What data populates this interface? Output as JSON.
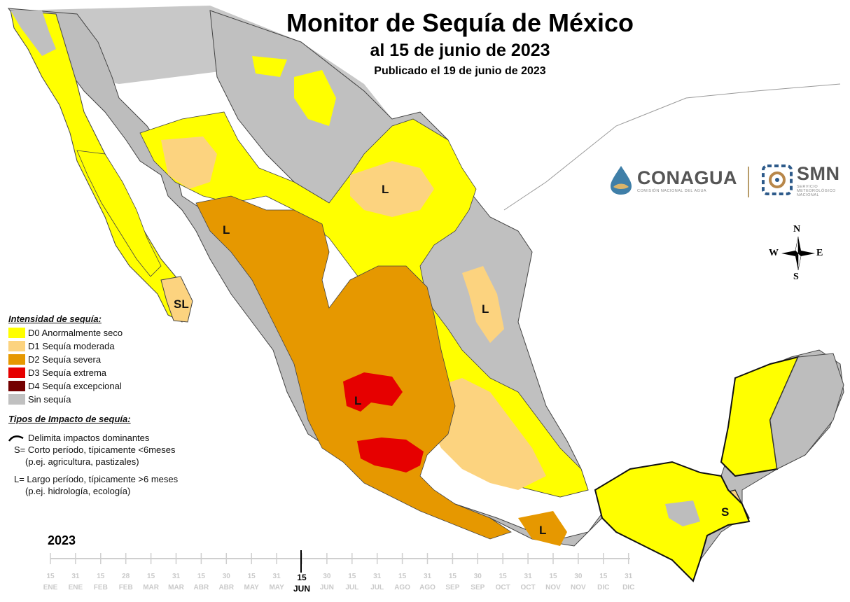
{
  "header": {
    "title": "Monitor de Sequía de México",
    "subtitle": "al 15 de junio de 2023",
    "published": "Publicado el 19 de junio de 2023"
  },
  "logos": {
    "conagua_name": "CONAGUA",
    "conagua_sub": "COMISIÓN NACIONAL DEL AGUA",
    "smn_name": "SMN",
    "smn_sub_1": "SERVICIO",
    "smn_sub_2": "METEOROLÓGICO",
    "smn_sub_3": "NACIONAL"
  },
  "compass": {
    "n": "N",
    "s": "S",
    "e": "E",
    "w": "W"
  },
  "legend": {
    "title": "Intensidad de sequía:",
    "items": [
      {
        "label": "D0 Anormalmente seco",
        "color": "#ffff00"
      },
      {
        "label": "D1 Sequía moderada",
        "color": "#fcd37f"
      },
      {
        "label": "D2 Sequía severa",
        "color": "#e69800"
      },
      {
        "label": "D3 Sequía extrema",
        "color": "#e60000"
      },
      {
        "label": "D4 Sequía excepcional",
        "color": "#730000"
      },
      {
        "label": "Sin sequía",
        "color": "#c0c0c0"
      }
    ]
  },
  "impacts": {
    "title": "Tipos de Impacto de sequía:",
    "line_label": "Delimita impactos dominantes",
    "short_label": "S= Corto período, típicamente <6meses",
    "short_example": "(p.ej. agricultura, pastizales)",
    "long_label": "L= Largo período, típicamente >6 meses",
    "long_example": "(p.ej. hidrología, ecología)"
  },
  "map_labels": {
    "l_north": "L",
    "l_sinaloa": "L",
    "sl_bcs": "SL",
    "l_nl": "L",
    "l_jalisco": "L",
    "l_oaxaca": "L",
    "s_yucatan": "S"
  },
  "timeline": {
    "year": "2023",
    "days": [
      "15",
      "31",
      "15",
      "28",
      "15",
      "31",
      "15",
      "30",
      "15",
      "31",
      "15",
      "30",
      "15",
      "31",
      "15",
      "31",
      "15",
      "30",
      "15",
      "31",
      "15",
      "30",
      "15",
      "31"
    ],
    "months": [
      "ENE",
      "ENE",
      "FEB",
      "FEB",
      "MAR",
      "MAR",
      "ABR",
      "ABR",
      "MAY",
      "MAY",
      "JUN",
      "JUN",
      "JUL",
      "JUL",
      "AGO",
      "AGO",
      "SEP",
      "SEP",
      "OCT",
      "OCT",
      "NOV",
      "NOV",
      "DIC",
      "DIC"
    ],
    "current_index": 10
  }
}
